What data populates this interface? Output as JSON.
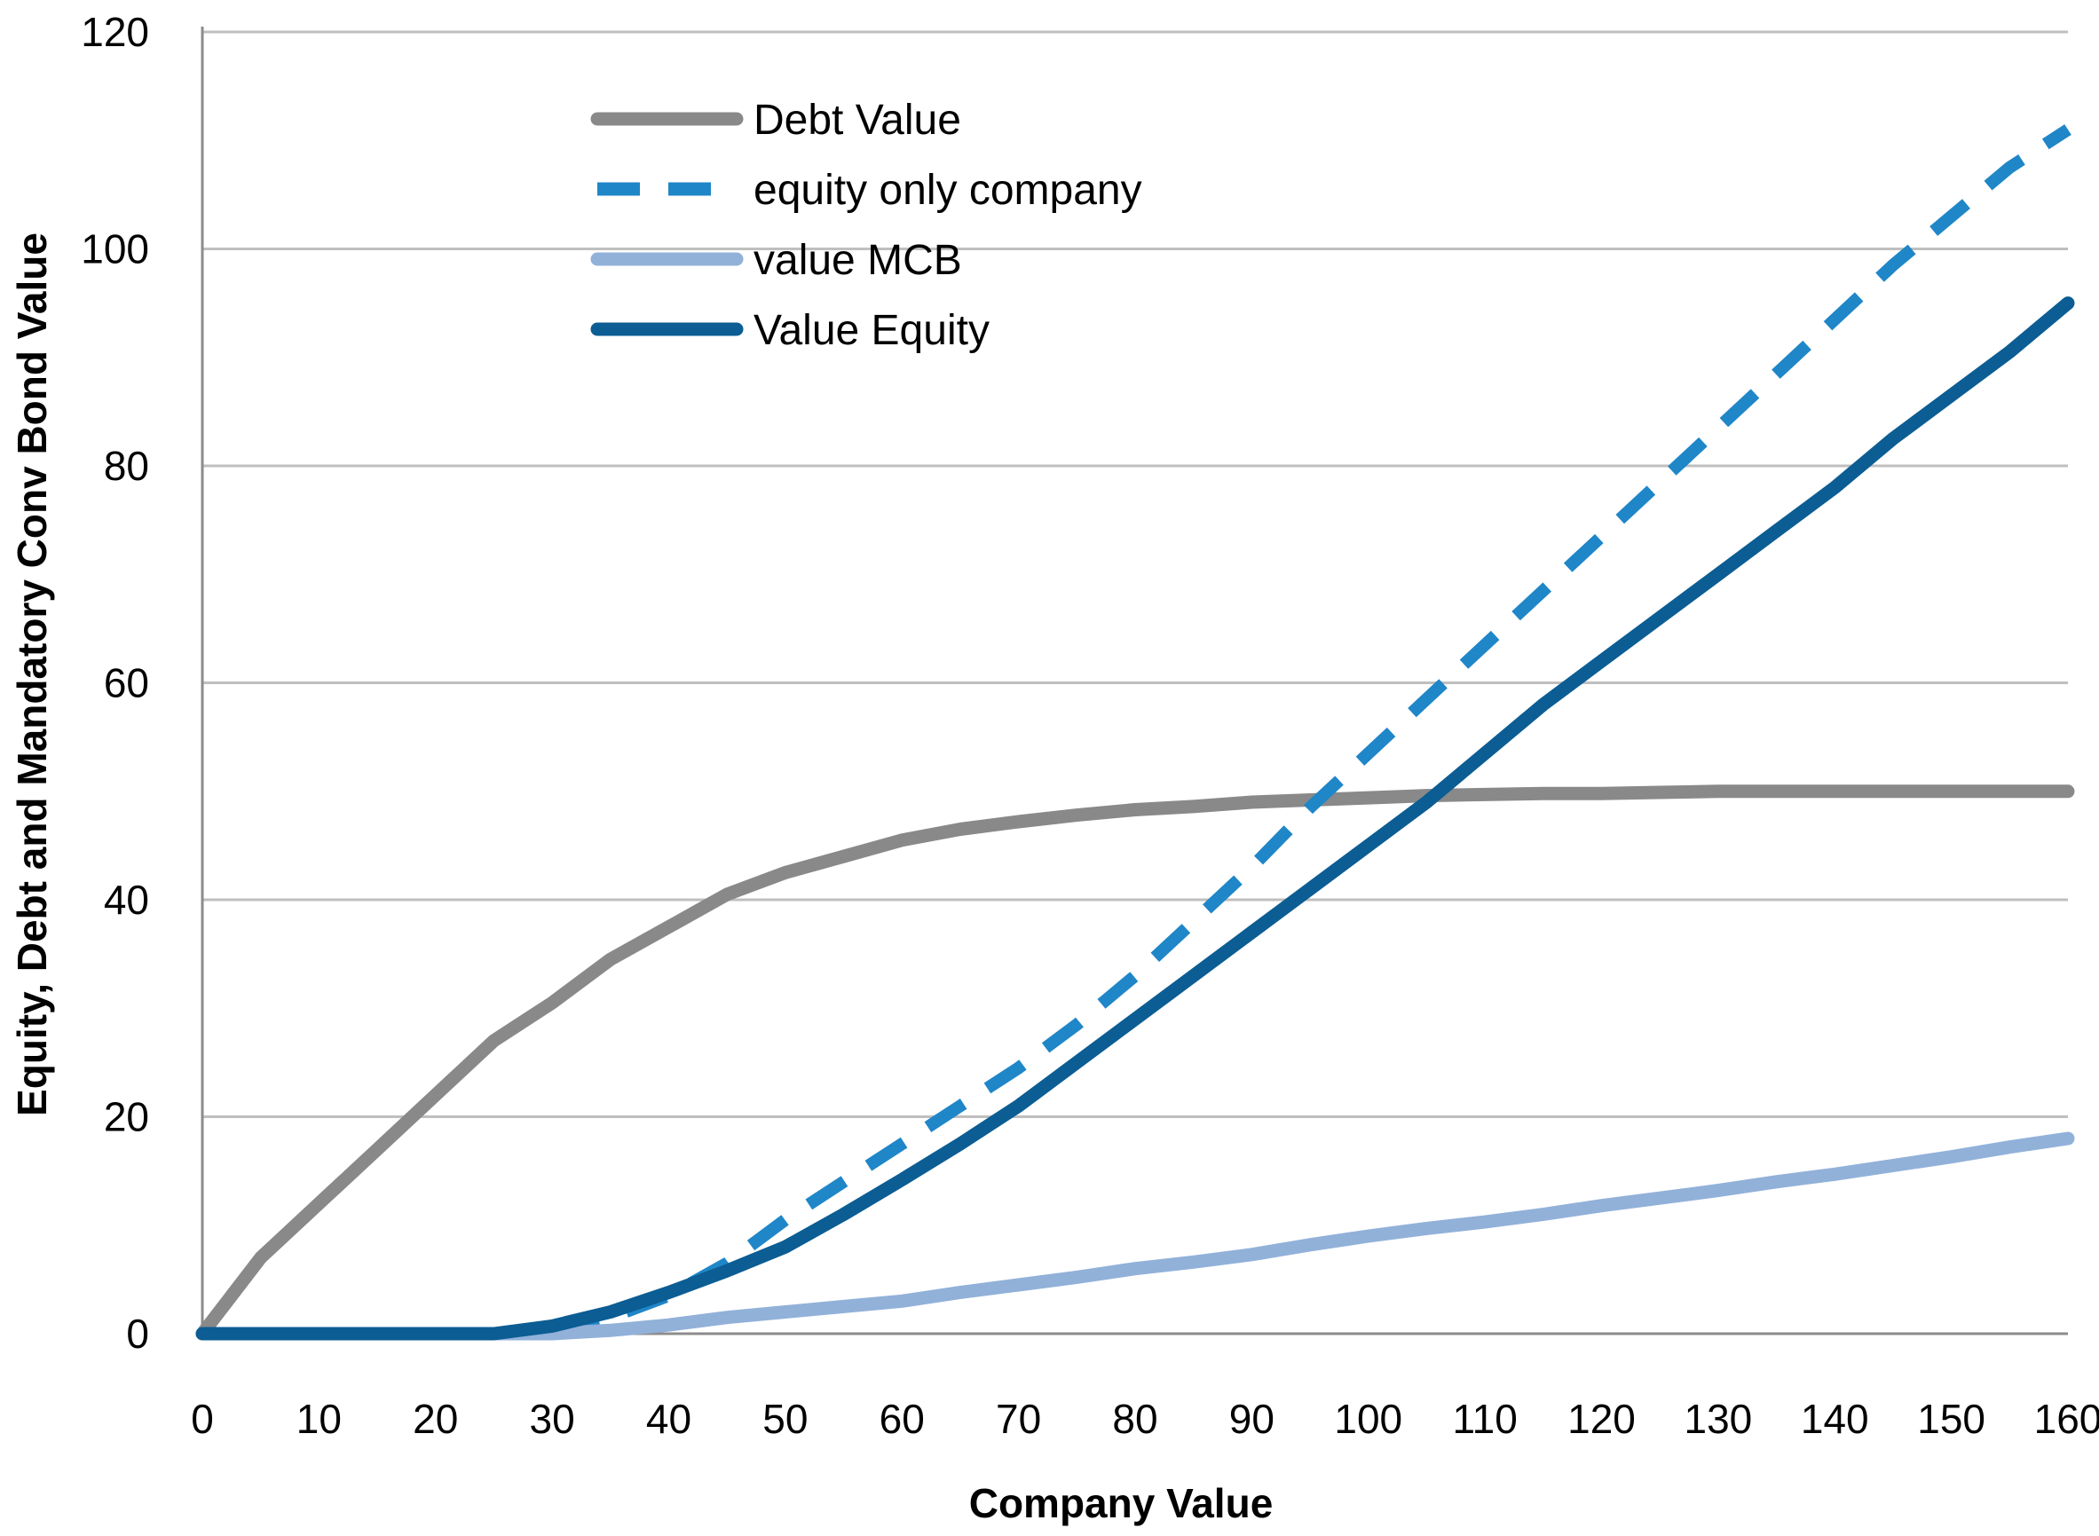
{
  "chart_data": {
    "type": "line",
    "title": "",
    "xlabel": "Company Value",
    "ylabel": "Equity, Debt and Mandatory Conv Bond Value",
    "xlim": [
      0,
      160
    ],
    "ylim": [
      0,
      120
    ],
    "x_ticks": [
      "0",
      "10",
      "20",
      "30",
      "40",
      "50",
      "60",
      "70",
      "80",
      "90",
      "100",
      "110",
      "120",
      "130",
      "140",
      "150",
      "160"
    ],
    "y_ticks": [
      "0",
      "20",
      "40",
      "60",
      "80",
      "100",
      "120"
    ],
    "grid": "horizontal",
    "legend_position": "top-left",
    "x": [
      0,
      5,
      10,
      15,
      20,
      25,
      30,
      35,
      40,
      45,
      50,
      55,
      60,
      65,
      70,
      75,
      80,
      85,
      90,
      95,
      100,
      105,
      110,
      115,
      120,
      125,
      130,
      135,
      140,
      145,
      150,
      155,
      160
    ],
    "series": [
      {
        "name": "Debt Value",
        "color": "#898989",
        "style": "solid",
        "values": [
          0,
          7,
          12,
          17,
          22,
          27,
          30.5,
          34.5,
          37.5,
          40.5,
          42.5,
          44,
          45.5,
          46.5,
          47.2,
          47.8,
          48.3,
          48.6,
          49,
          49.2,
          49.4,
          49.6,
          49.7,
          49.8,
          49.8,
          49.9,
          50,
          50,
          50,
          50,
          50,
          50,
          50
        ]
      },
      {
        "name": "equity only company",
        "color": "#1f86c8",
        "style": "dashed",
        "values": [
          0,
          0,
          0,
          0,
          0,
          0,
          0.5,
          1.5,
          3.5,
          6.5,
          10.5,
          14,
          17.5,
          21,
          24.5,
          28.5,
          33,
          38,
          43,
          48.5,
          53.5,
          58.5,
          63.5,
          68.5,
          73.5,
          78.5,
          83.5,
          88.5,
          93.5,
          98.5,
          103,
          107.5,
          111
        ]
      },
      {
        "name": "value MCB",
        "color": "#91b1d9",
        "style": "solid",
        "values": [
          0,
          0,
          0,
          0,
          0,
          0,
          0,
          0.3,
          0.8,
          1.5,
          2,
          2.5,
          3,
          3.8,
          4.5,
          5.2,
          6,
          6.6,
          7.3,
          8.2,
          9,
          9.7,
          10.3,
          11,
          11.8,
          12.5,
          13.2,
          14,
          14.7,
          15.5,
          16.3,
          17.2,
          18
        ]
      },
      {
        "name": "Value Equity",
        "color": "#0b5d93",
        "style": "solid",
        "values": [
          0,
          0,
          0,
          0,
          0,
          0,
          0.7,
          2,
          3.8,
          5.8,
          8,
          11,
          14.2,
          17.5,
          21,
          25,
          29,
          33,
          37,
          41,
          45,
          49,
          53.5,
          58,
          62,
          66,
          70,
          74,
          78,
          82.5,
          86.5,
          90.5,
          95
        ]
      }
    ]
  }
}
